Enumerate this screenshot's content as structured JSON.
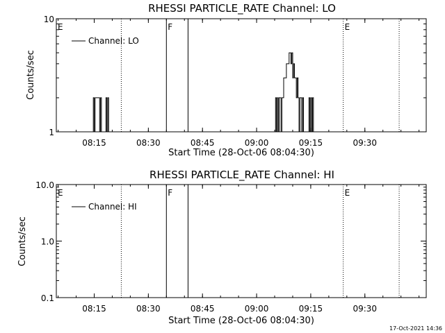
{
  "stamp": "17-Oct-2021 14:36",
  "chart_data": [
    {
      "type": "line",
      "title": "RHESSI PARTICLE_RATE Channel: LO",
      "xlabel": "Start Time (28-Oct-06 08:04:30)",
      "ylabel": "Counts/sec",
      "xlim": [
        "08:04:30",
        "09:47:00"
      ],
      "x_ticks": [
        "08:15",
        "08:30",
        "08:45",
        "09:00",
        "09:15",
        "09:30"
      ],
      "y_scale": "log",
      "ylim": [
        1,
        10
      ],
      "y_ticks": [
        "1",
        "10"
      ],
      "legend": {
        "label": "Channel: LO",
        "placement": "top-left"
      },
      "series": [
        {
          "name": "Channel: LO",
          "x": [
            "08:14:30",
            "08:14:45",
            "08:15:00",
            "08:15:15",
            "08:15:30",
            "08:15:45",
            "08:16:00",
            "08:16:15",
            "08:16:30",
            "08:16:45",
            "08:17:00",
            "08:17:15",
            "08:17:30",
            "08:17:45",
            "08:18:00",
            "08:18:15",
            "08:18:30",
            "08:18:45",
            "08:19:00",
            "08:19:15",
            "09:05:00",
            "09:05:15",
            "09:05:30",
            "09:05:45",
            "09:06:00",
            "09:06:15",
            "09:06:30",
            "09:06:45",
            "09:07:00",
            "09:07:15",
            "09:07:30",
            "09:07:45",
            "09:08:00",
            "09:08:15",
            "09:08:30",
            "09:08:45",
            "09:09:00",
            "09:09:15",
            "09:09:30",
            "09:09:45",
            "09:10:00",
            "09:10:15",
            "09:10:30",
            "09:10:45",
            "09:11:00",
            "09:11:15",
            "09:11:30",
            "09:11:45",
            "09:12:00",
            "09:12:15",
            "09:12:30",
            "09:12:45",
            "09:13:00",
            "09:13:15",
            "09:13:30",
            "09:13:45",
            "09:14:00",
            "09:14:15",
            "09:14:30",
            "09:14:45",
            "09:15:00",
            "09:15:15",
            "09:15:30",
            "09:15:45",
            "09:16:00",
            "09:16:15",
            "09:16:30"
          ],
          "values": [
            1,
            2,
            1,
            2,
            2,
            2,
            2,
            2,
            1,
            2,
            1,
            1,
            1,
            1,
            1,
            2,
            1,
            2,
            1,
            1,
            1,
            2,
            1,
            2,
            1,
            2,
            2,
            1,
            2,
            2,
            3,
            3,
            3,
            4,
            4,
            4,
            5,
            5,
            4,
            5,
            3,
            4,
            3,
            3,
            2,
            3,
            2,
            1,
            2,
            2,
            1,
            2,
            1,
            1,
            1,
            1,
            1,
            1,
            2,
            1,
            2,
            1,
            2,
            1,
            1,
            1,
            1
          ]
        }
      ],
      "vlines": [
        {
          "time": "08:04:30",
          "style": "dotted",
          "label": "E"
        },
        {
          "time": "08:22:30",
          "style": "dotted",
          "label": ""
        },
        {
          "time": "08:35:00",
          "style": "solid",
          "label": "F"
        },
        {
          "time": "08:41:00",
          "style": "solid",
          "label": ""
        },
        {
          "time": "09:24:00",
          "style": "dotted",
          "label": "E"
        },
        {
          "time": "09:39:30",
          "style": "dotted",
          "label": ""
        }
      ]
    },
    {
      "type": "line",
      "title": "RHESSI PARTICLE_RATE Channel: HI",
      "xlabel": "Start Time (28-Oct-06 08:04:30)",
      "ylabel": "Counts/sec",
      "xlim": [
        "08:04:30",
        "09:47:00"
      ],
      "x_ticks": [
        "08:15",
        "08:30",
        "08:45",
        "09:00",
        "09:15",
        "09:30"
      ],
      "y_scale": "log",
      "ylim": [
        0.1,
        10
      ],
      "y_ticks": [
        "0.1",
        "1.0",
        "10.0"
      ],
      "legend": {
        "label": "Channel: HI",
        "placement": "top-left"
      },
      "series": [
        {
          "name": "Channel: HI",
          "x": [],
          "values": []
        }
      ],
      "vlines": [
        {
          "time": "08:04:30",
          "style": "dotted",
          "label": "E"
        },
        {
          "time": "08:22:30",
          "style": "dotted",
          "label": ""
        },
        {
          "time": "08:35:00",
          "style": "solid",
          "label": "F"
        },
        {
          "time": "08:41:00",
          "style": "solid",
          "label": ""
        },
        {
          "time": "09:24:00",
          "style": "dotted",
          "label": "E"
        },
        {
          "time": "09:39:30",
          "style": "dotted",
          "label": ""
        }
      ]
    }
  ]
}
